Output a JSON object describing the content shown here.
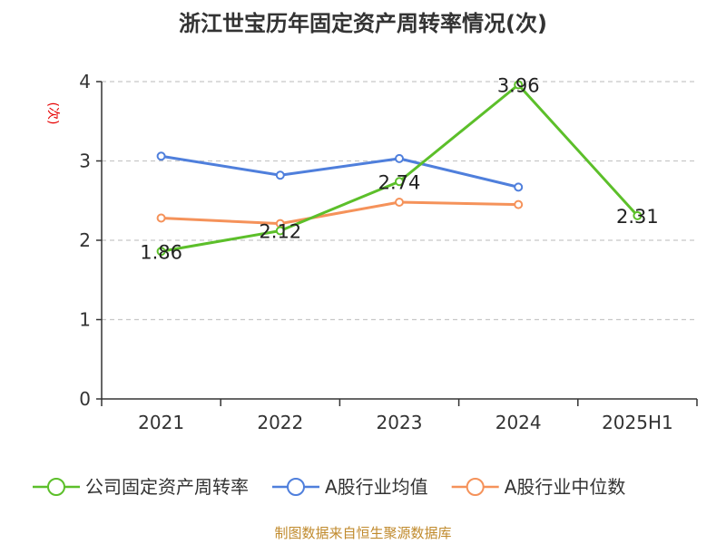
{
  "chart_data": {
    "type": "line",
    "title": "浙江世宝历年固定资产周转率情况(次)",
    "ylabel": "(次)",
    "xlabel": "",
    "categories": [
      "2021",
      "2022",
      "2023",
      "2024",
      "2025H1"
    ],
    "ylim": [
      0,
      4
    ],
    "yticks": [
      "0",
      "1",
      "2",
      "3",
      "4"
    ],
    "grid": true,
    "legend_position": "bottom",
    "series": [
      {
        "name": "公司固定资产周转率",
        "color": "#5cbf2a",
        "values": [
          1.86,
          2.12,
          2.74,
          3.96,
          2.31
        ],
        "labels": [
          "1.86",
          "2.12",
          "2.74",
          "3.96",
          "2.31"
        ]
      },
      {
        "name": "A股行业均值",
        "color": "#4f7fdc",
        "values": [
          3.06,
          2.82,
          3.03,
          2.67,
          null
        ]
      },
      {
        "name": "A股行业中位数",
        "color": "#f5925a",
        "values": [
          2.28,
          2.21,
          2.48,
          2.45,
          null
        ]
      }
    ],
    "source": "制图数据来自恒生聚源数据库"
  }
}
